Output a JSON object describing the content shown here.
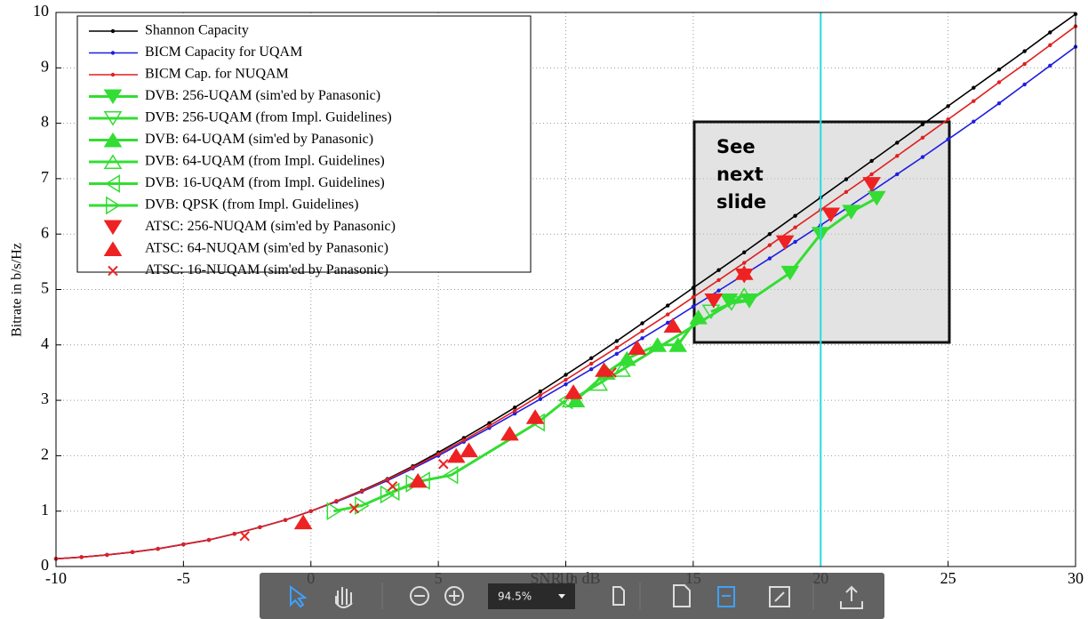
{
  "chart_data": {
    "type": "line",
    "x_label": "SNR in dB",
    "y_label": "Bitrate in b/s/Hz",
    "xlim": [
      -10,
      30
    ],
    "ylim": [
      0,
      10
    ],
    "xticks": [
      -10,
      -5,
      0,
      5,
      10,
      15,
      20,
      25,
      30
    ],
    "yticks": [
      0,
      1,
      2,
      3,
      4,
      5,
      6,
      7,
      8,
      9,
      10
    ],
    "grid": true,
    "legend": "upper left",
    "x": [
      -10,
      -9,
      -8,
      -7,
      -6,
      -5,
      -4,
      -3,
      -2,
      -1,
      0,
      1,
      2,
      3,
      4,
      5,
      6,
      7,
      8,
      9,
      10,
      11,
      12,
      13,
      14,
      15,
      16,
      17,
      18,
      19,
      20,
      21,
      22,
      23,
      24,
      25,
      26,
      27,
      28,
      29,
      30
    ],
    "series": [
      {
        "name": "Shannon Capacity",
        "color": "#000000",
        "marker": "dot",
        "connected": true,
        "values": [
          0.14,
          0.17,
          0.21,
          0.26,
          0.32,
          0.4,
          0.48,
          0.59,
          0.71,
          0.84,
          1.0,
          1.18,
          1.37,
          1.58,
          1.81,
          2.06,
          2.32,
          2.59,
          2.87,
          3.16,
          3.46,
          3.76,
          4.07,
          4.39,
          4.71,
          5.03,
          5.35,
          5.67,
          6.0,
          6.33,
          6.66,
          6.99,
          7.32,
          7.65,
          7.98,
          8.31,
          8.64,
          8.97,
          9.3,
          9.64,
          9.97
        ]
      },
      {
        "name": "BICM Capacity for UQAM",
        "color": "#1f1fe0",
        "marker": "dot",
        "connected": true,
        "values": [
          0.14,
          0.17,
          0.21,
          0.26,
          0.32,
          0.4,
          0.48,
          0.59,
          0.71,
          0.84,
          1.0,
          1.17,
          1.35,
          1.55,
          1.77,
          2.0,
          2.25,
          2.5,
          2.76,
          3.02,
          3.29,
          3.56,
          3.84,
          4.12,
          4.4,
          4.69,
          4.98,
          5.27,
          5.56,
          5.86,
          6.16,
          6.46,
          6.77,
          7.08,
          7.39,
          7.71,
          8.03,
          8.36,
          8.7,
          9.04,
          9.38
        ]
      },
      {
        "name": "BICM Cap. for NUQAM",
        "color": "#e02020",
        "marker": "dot",
        "connected": true,
        "values": [
          0.14,
          0.17,
          0.21,
          0.26,
          0.32,
          0.4,
          0.48,
          0.59,
          0.71,
          0.84,
          1.0,
          1.18,
          1.36,
          1.57,
          1.79,
          2.03,
          2.28,
          2.54,
          2.81,
          3.09,
          3.37,
          3.66,
          3.95,
          4.25,
          4.55,
          4.86,
          5.17,
          5.48,
          5.8,
          6.12,
          6.44,
          6.76,
          7.08,
          7.41,
          7.74,
          8.07,
          8.4,
          8.74,
          9.07,
          9.41,
          9.75
        ]
      },
      {
        "name": "DVB: 256-UQAM (sim'ed by Panasonic)",
        "color": "#33dd33",
        "marker": "triangle-down",
        "filled": true,
        "connected": true,
        "x": [
          16.4,
          17.2,
          18.8,
          20.0,
          21.2,
          22.2
        ],
        "values": [
          4.8,
          4.8,
          5.3,
          6.0,
          6.4,
          6.65
        ]
      },
      {
        "name": "DVB: 256-UQAM (from Impl. Guidelines)",
        "color": "#33dd33",
        "marker": "triangle-down",
        "filled": false,
        "connected": true,
        "x": [
          15.7,
          16.5,
          17.2
        ],
        "values": [
          4.6,
          4.75,
          4.8
        ]
      },
      {
        "name": "DVB: 64-UQAM (sim'ed by Panasonic)",
        "color": "#33dd33",
        "marker": "triangle-up",
        "filled": true,
        "connected": true,
        "x": [
          10.4,
          11.6,
          12.4,
          13.6,
          14.4,
          15.2
        ],
        "values": [
          3.0,
          3.5,
          3.75,
          4.0,
          4.0,
          4.5
        ]
      },
      {
        "name": "DVB: 64-UQAM (from Impl. Guidelines)",
        "color": "#33dd33",
        "marker": "triangle-up",
        "filled": false,
        "connected": true,
        "x": [
          10.2,
          11.3,
          12.2,
          17.0
        ],
        "values": [
          3.0,
          3.3,
          3.55,
          4.9
        ]
      },
      {
        "name": "DVB: 16-UQAM (from Impl. Guidelines)",
        "color": "#33dd33",
        "marker": "triangle-left",
        "filled": false,
        "connected": true,
        "x": [
          3.2,
          4.4,
          5.5,
          8.9,
          10.0
        ],
        "values": [
          1.35,
          1.55,
          1.65,
          2.6,
          3.0
        ]
      },
      {
        "name": "DVB: QPSK (from Impl. Guidelines)",
        "color": "#33dd33",
        "marker": "triangle-right",
        "filled": false,
        "connected": true,
        "x": [
          0.9,
          2.0,
          3.0,
          4.0
        ],
        "values": [
          1.0,
          1.1,
          1.3,
          1.5
        ]
      },
      {
        "name": "ATSC: 256-NUQAM (sim'ed by Panasonic)",
        "color": "#ee2222",
        "marker": "triangle-down",
        "filled": true,
        "connected": false,
        "x": [
          15.8,
          17.0,
          18.6,
          20.4,
          22.0
        ],
        "values": [
          4.8,
          5.25,
          5.85,
          6.35,
          6.9
        ]
      },
      {
        "name": "ATSC: 64-NUQAM (sim'ed by Panasonic)",
        "color": "#ee2222",
        "marker": "triangle-up",
        "filled": true,
        "connected": false,
        "x": [
          -0.3,
          4.2,
          5.7,
          6.2,
          7.8,
          8.8,
          10.3,
          11.5,
          12.8,
          14.2,
          17.0
        ],
        "values": [
          0.8,
          1.55,
          2.0,
          2.1,
          2.4,
          2.7,
          3.15,
          3.55,
          3.95,
          4.35,
          5.3
        ]
      },
      {
        "name": "ATSC: 16-NUQAM (sim'ed by Panasonic)",
        "color": "#ee2222",
        "marker": "cross",
        "filled": false,
        "connected": false,
        "x": [
          -2.6,
          1.7,
          3.2,
          5.2,
          11.8
        ],
        "values": [
          0.55,
          1.05,
          1.45,
          1.85,
          3.5
        ]
      }
    ],
    "vline_x": 20,
    "vline_color": "#22dddd",
    "annotation": "See next slide"
  },
  "toolbar": {
    "zoom": "94.5%"
  }
}
